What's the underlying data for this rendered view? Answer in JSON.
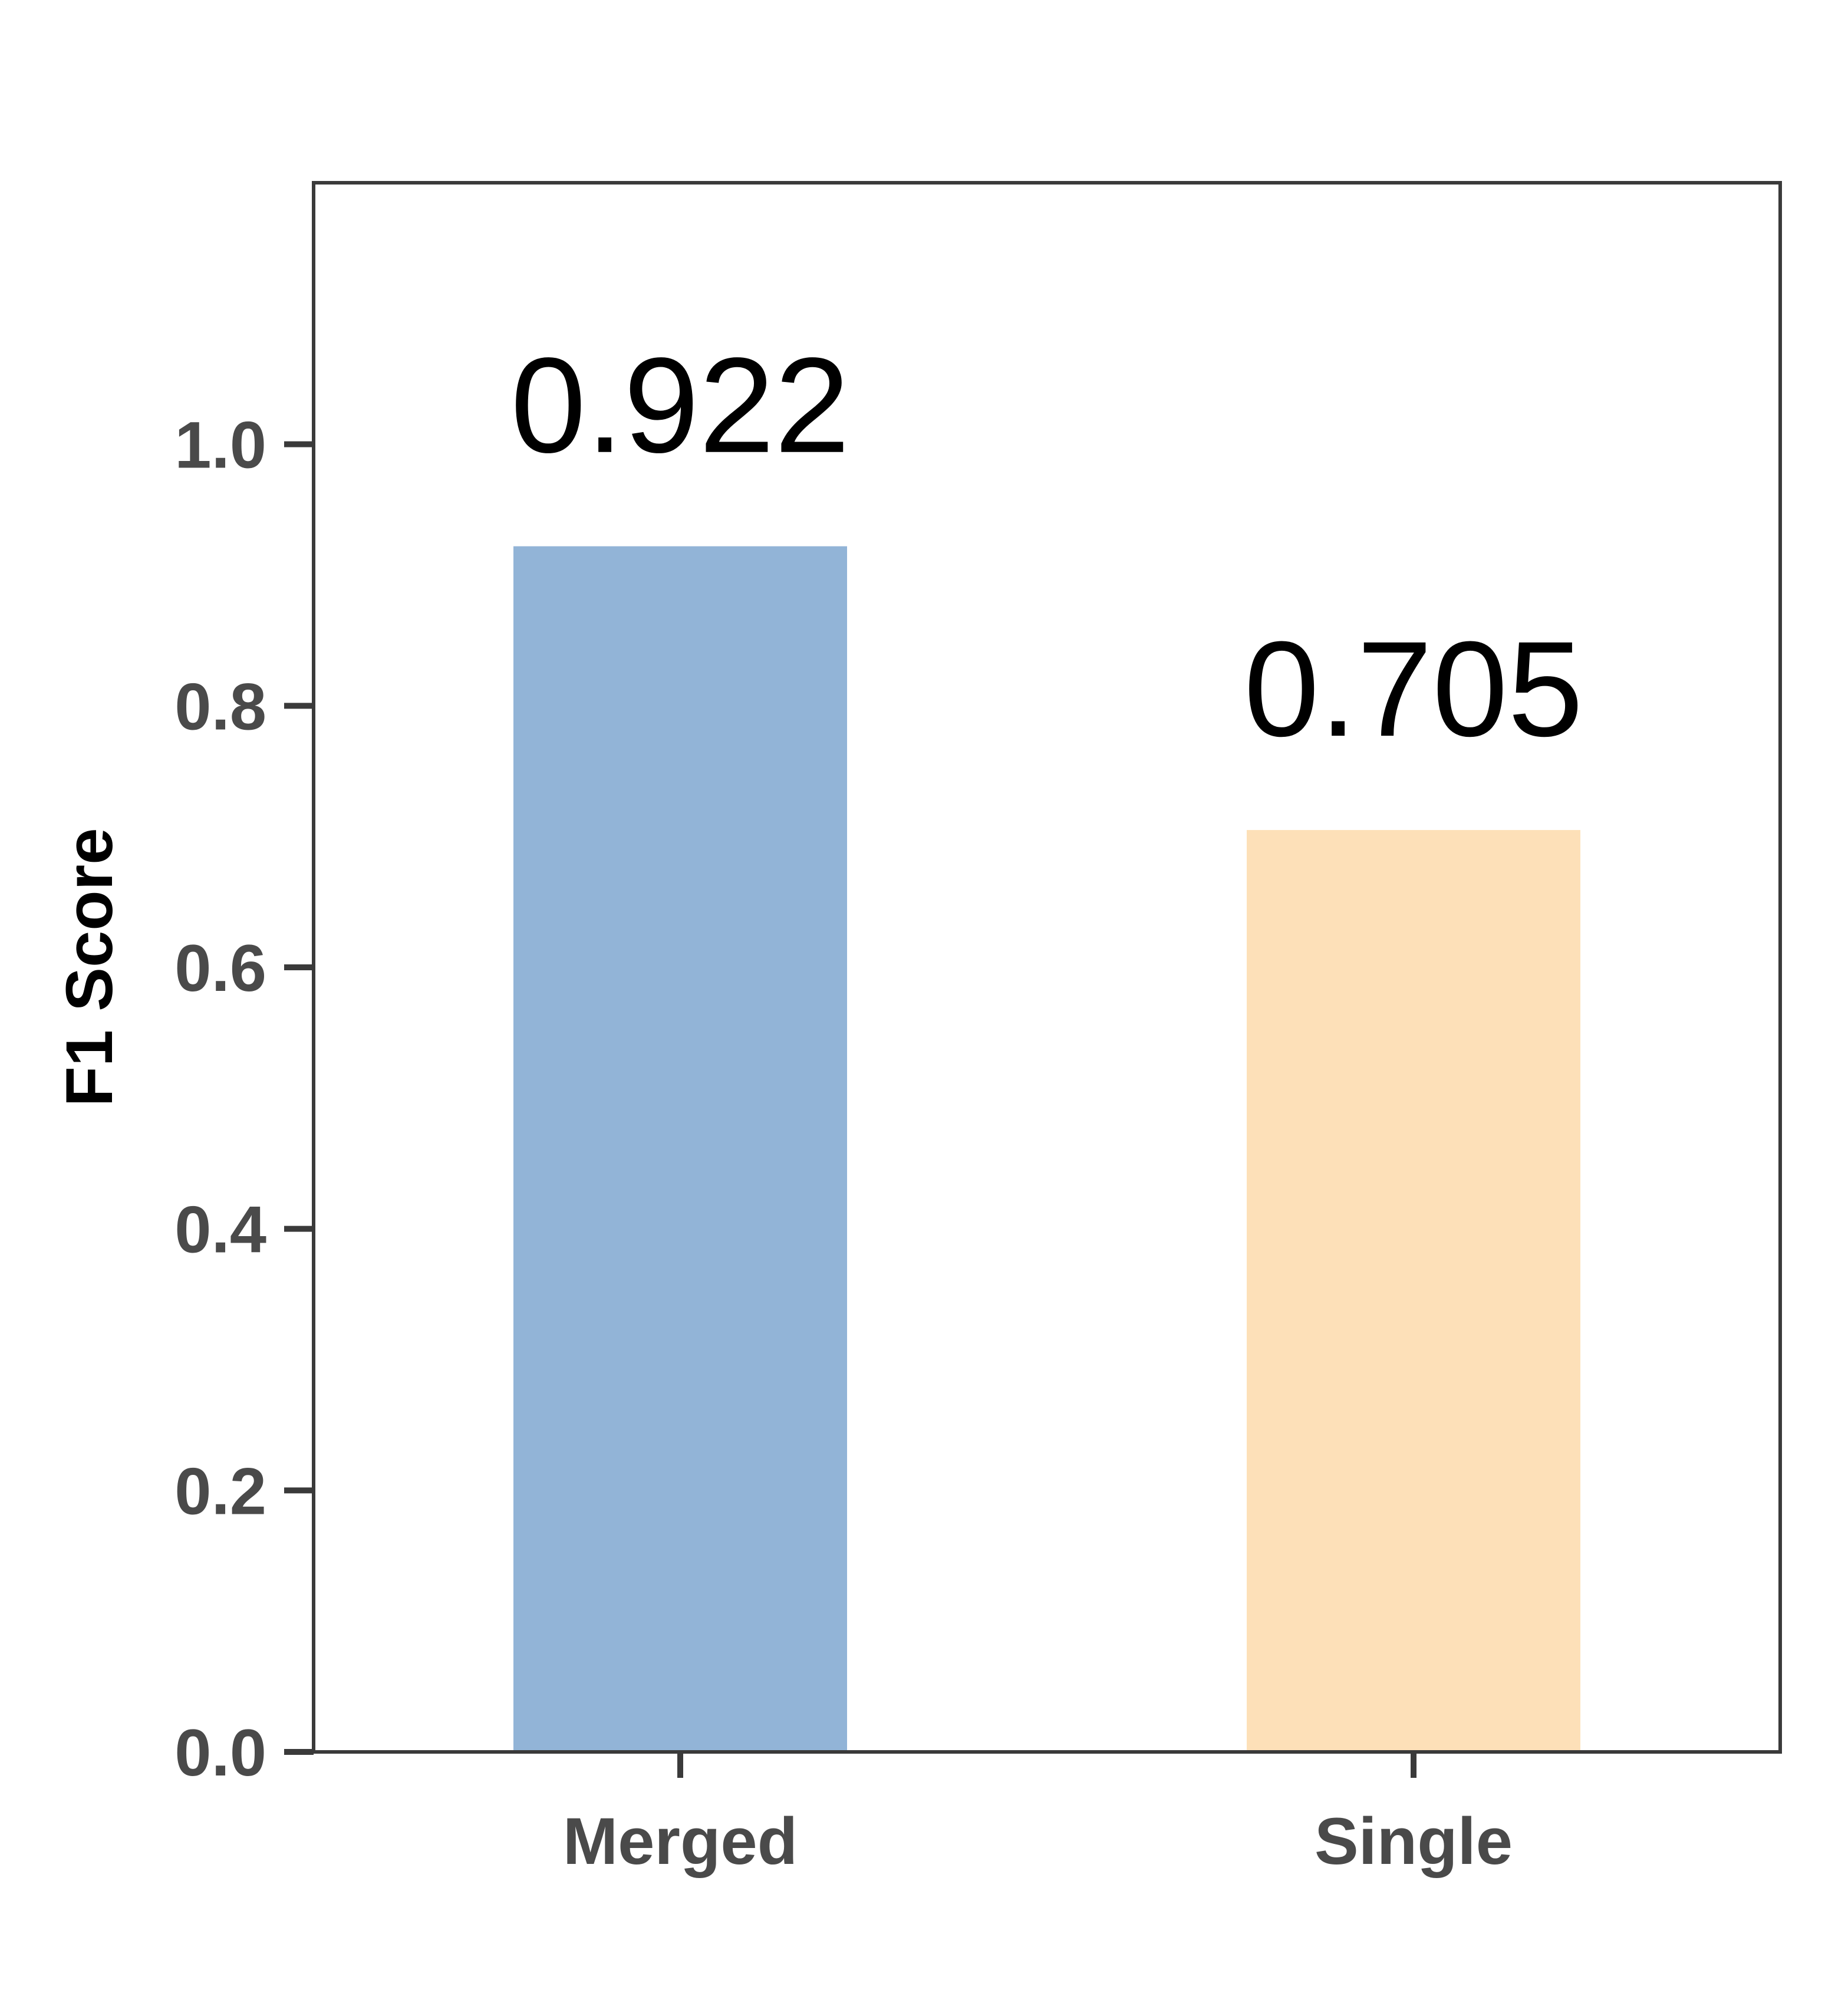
{
  "chart_data": {
    "type": "bar",
    "title": "",
    "xlabel": "",
    "ylabel": "F1 Score",
    "categories": [
      "Merged",
      "Single"
    ],
    "values": [
      0.922,
      0.705
    ],
    "value_labels": [
      "0.922",
      "0.705"
    ],
    "bar_colors": [
      "#92b4d7",
      "#fde0b8"
    ],
    "ylim": [
      0,
      1.2
    ],
    "yticks": [
      0.0,
      0.2,
      0.4,
      0.6,
      0.8,
      1.0
    ],
    "ytick_labels": [
      "0.0",
      "0.2",
      "0.4",
      "0.6",
      "0.8",
      "1.0"
    ],
    "grid": false,
    "legend": "none"
  }
}
